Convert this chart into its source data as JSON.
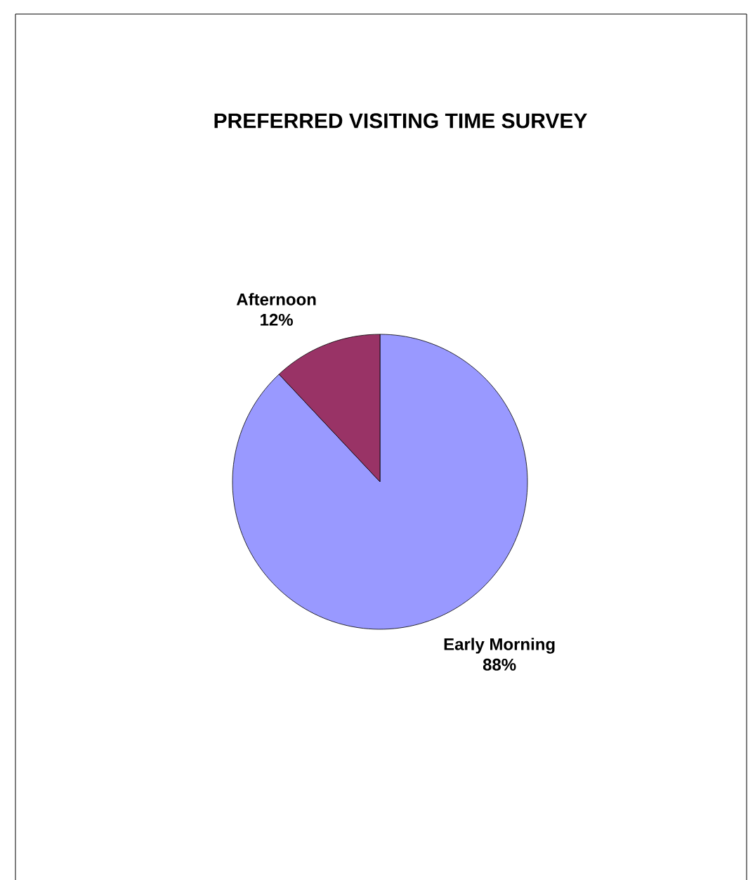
{
  "chart_data": {
    "type": "pie",
    "title": "PREFERRED VISITING TIME SURVEY",
    "categories": [
      "Early Morning",
      "Afternoon"
    ],
    "values": [
      88,
      12
    ],
    "colors": [
      "#9999ff",
      "#993366"
    ],
    "value_labels": [
      "88%",
      "12%"
    ]
  }
}
